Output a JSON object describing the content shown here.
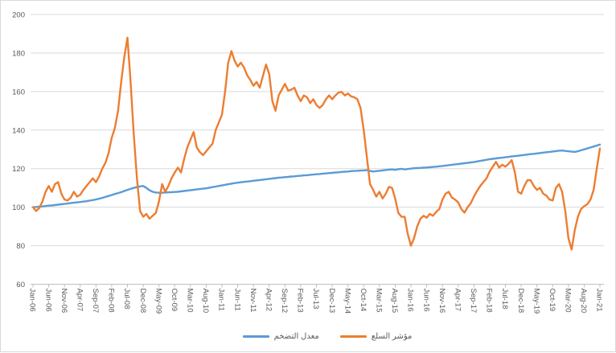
{
  "colors": {
    "inflation_line": "#5B9BD5",
    "commodity_line": "#ED7D31",
    "gridline": "#D9D9D9",
    "axis_line": "#BFBFBF",
    "axis_text": "#595959",
    "background": "#FFFFFF"
  },
  "legend": {
    "items": [
      {
        "label": "معدل التضخم",
        "color": "#5B9BD5"
      },
      {
        "label": "مؤشر السلع",
        "color": "#ED7D31"
      }
    ]
  },
  "chart_data": {
    "type": "line",
    "title": "",
    "xlabel": "",
    "ylabel": "",
    "frequency": "monthly",
    "x_start": "Jan-06",
    "x_end": "Jan-21",
    "ylim": [
      60,
      200
    ],
    "y_ticks": [
      60,
      80,
      100,
      120,
      140,
      160,
      180,
      200
    ],
    "grid": "horizontal",
    "legend_position": "bottom",
    "x_tick_interval_months": 5,
    "x_tick_labels": [
      "Jan-06",
      "Jun-06",
      "Nov-06",
      "Apr-07",
      "Sep-07",
      "Feb-08",
      "Jul-08",
      "Dec-08",
      "May-09",
      "Oct-09",
      "Mar-10",
      "Aug-10",
      "Jan-11",
      "Jun-11",
      "Nov-11",
      "Apr-12",
      "Sep-12",
      "Feb-13",
      "Jul-13",
      "Dec-13",
      "May-14",
      "Oct-14",
      "Mar-15",
      "Aug-15",
      "Jan-16",
      "Jun-16",
      "Nov-16",
      "Apr-17",
      "Sep-17",
      "Feb-18",
      "Jul-18",
      "Dec-18",
      "May-19",
      "Oct-19",
      "Mar-20",
      "Aug-20",
      "Jan-21"
    ],
    "series": [
      {
        "name": "معدل التضخم",
        "color": "#5B9BD5",
        "values": [
          100.0,
          100.1,
          100.3,
          100.4,
          100.6,
          100.8,
          100.9,
          101.1,
          101.3,
          101.5,
          101.7,
          101.9,
          102.1,
          102.3,
          102.5,
          102.7,
          102.9,
          103.1,
          103.4,
          103.7,
          104.0,
          104.4,
          104.8,
          105.3,
          105.8,
          106.3,
          106.8,
          107.3,
          107.8,
          108.4,
          109.0,
          109.5,
          110.0,
          110.4,
          110.8,
          111.0,
          110.0,
          108.8,
          108.0,
          107.6,
          107.5,
          107.5,
          107.6,
          107.7,
          107.8,
          107.9,
          108.0,
          108.2,
          108.4,
          108.6,
          108.8,
          109.0,
          109.2,
          109.4,
          109.6,
          109.8,
          110.1,
          110.4,
          110.7,
          111.0,
          111.3,
          111.6,
          111.9,
          112.2,
          112.5,
          112.7,
          112.9,
          113.1,
          113.3,
          113.5,
          113.7,
          113.9,
          114.1,
          114.3,
          114.5,
          114.7,
          114.9,
          115.1,
          115.3,
          115.4,
          115.6,
          115.7,
          115.9,
          116.0,
          116.2,
          116.3,
          116.5,
          116.6,
          116.8,
          116.9,
          117.1,
          117.2,
          117.4,
          117.5,
          117.7,
          117.8,
          118.0,
          118.1,
          118.3,
          118.4,
          118.5,
          118.7,
          118.8,
          118.9,
          119.0,
          119.1,
          119.2,
          118.8,
          118.5,
          118.7,
          118.9,
          119.1,
          119.3,
          119.5,
          119.6,
          119.4,
          119.7,
          119.9,
          119.6,
          119.8,
          120.0,
          120.2,
          120.3,
          120.4,
          120.5,
          120.6,
          120.7,
          120.9,
          121.0,
          121.2,
          121.4,
          121.6,
          121.8,
          122.0,
          122.2,
          122.4,
          122.6,
          122.8,
          123.0,
          123.2,
          123.4,
          123.7,
          124.0,
          124.3,
          124.6,
          124.9,
          125.1,
          125.3,
          125.5,
          125.7,
          125.9,
          126.1,
          126.3,
          126.5,
          126.7,
          126.9,
          127.1,
          127.3,
          127.5,
          127.7,
          127.9,
          128.1,
          128.3,
          128.5,
          128.7,
          128.9,
          129.1,
          129.3,
          129.4,
          129.2,
          129.0,
          128.8,
          128.7,
          129.0,
          129.5,
          130.0,
          130.5,
          131.0,
          131.5,
          132.0,
          132.5
        ]
      },
      {
        "name": "مؤشر السلع",
        "color": "#ED7D31",
        "values": [
          100,
          98,
          99.5,
          103,
          108,
          111,
          108,
          112,
          113,
          107,
          104,
          103.5,
          105,
          108,
          105.5,
          106.5,
          109,
          111,
          113,
          115,
          113,
          116,
          120,
          123,
          128,
          136,
          141,
          150,
          165,
          178,
          188,
          165,
          138,
          115,
          98,
          95,
          96.5,
          94,
          95.5,
          97,
          103,
          112,
          108,
          111,
          115,
          118,
          120.5,
          118,
          125,
          131,
          135,
          139,
          131,
          128.5,
          127,
          129,
          131,
          133,
          140,
          144,
          148,
          160,
          175,
          181,
          176,
          173,
          175,
          172.5,
          168.5,
          166,
          163,
          165,
          162,
          168,
          174,
          169,
          155,
          150,
          158,
          161,
          164,
          160.5,
          161,
          162,
          158,
          155,
          158,
          157,
          154,
          156,
          153,
          151.5,
          153,
          156,
          158,
          156,
          158,
          159.5,
          159.8,
          158,
          159,
          157.5,
          157,
          156,
          151.5,
          140,
          126,
          112,
          109,
          105.5,
          108,
          104.5,
          107,
          110.5,
          110,
          104.5,
          97,
          95,
          95,
          86,
          80,
          84,
          90,
          94,
          95.5,
          94.5,
          96.5,
          95.5,
          97.5,
          99,
          104,
          107,
          108,
          105,
          104,
          102.5,
          99,
          97.2,
          100,
          102,
          105.5,
          108.5,
          111,
          113,
          115,
          118.5,
          121,
          123.5,
          120.5,
          122,
          121,
          122.5,
          124.4,
          118,
          108,
          107,
          111,
          114,
          114,
          111,
          109,
          110,
          107,
          106,
          104,
          103.5,
          110,
          112,
          108,
          98,
          84,
          78,
          88,
          95,
          99,
          100.5,
          101.5,
          104,
          109,
          120,
          130.5
        ]
      }
    ]
  }
}
